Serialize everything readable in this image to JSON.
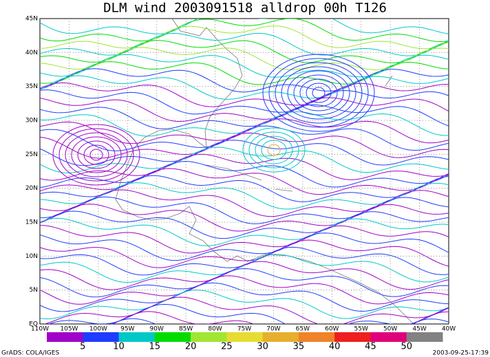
{
  "header": {
    "title": "DLM wind 2003091518 alldrop 00h T126"
  },
  "map": {
    "lat_labels": [
      "45N",
      "40N",
      "35N",
      "30N",
      "25N",
      "20N",
      "15N",
      "10N",
      "5N",
      "EQ"
    ],
    "lon_labels": [
      "110W",
      "105W",
      "100W",
      "95W",
      "90W",
      "85W",
      "80W",
      "75W",
      "70W",
      "65W",
      "60W",
      "55W",
      "50W",
      "45W",
      "40W"
    ]
  },
  "colorbar": {
    "labels": [
      "5",
      "10",
      "15",
      "20",
      "25",
      "30",
      "35",
      "40",
      "45",
      "50"
    ],
    "colors": [
      "#a000c8",
      "#1e3cff",
      "#00c8c8",
      "#00dc00",
      "#a0e632",
      "#e6dc32",
      "#e6af2d",
      "#f08228",
      "#f01e1e",
      "#e0007a",
      "#828282"
    ]
  },
  "footer": {
    "left": "GrADS: COLA/IGES",
    "right": "2003-09-25-17:39"
  }
}
